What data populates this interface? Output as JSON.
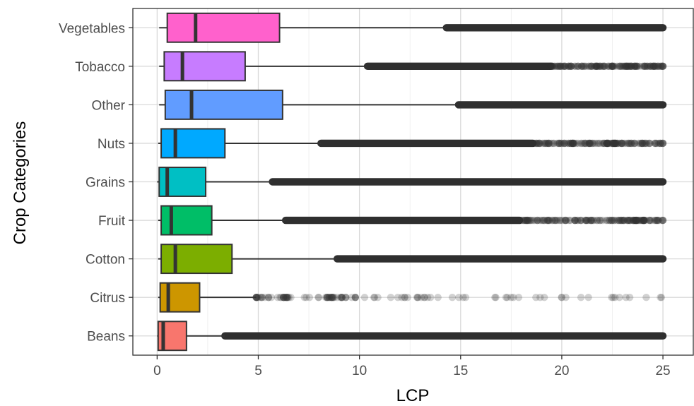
{
  "chart_data": {
    "type": "boxplot",
    "orientation": "horizontal",
    "xlabel": "LCP",
    "ylabel": "Crop Categories",
    "xlim": [
      -1.2,
      26.5
    ],
    "xticks": [
      0,
      5,
      10,
      15,
      20,
      25
    ],
    "xtick_labels": [
      "0",
      "5",
      "10",
      "15",
      "20",
      "25"
    ],
    "grid": true,
    "legend": "none",
    "categories": [
      "Beans",
      "Citrus",
      "Cotton",
      "Fruit",
      "Grains",
      "Nuts",
      "Other",
      "Tobacco",
      "Vegetables"
    ],
    "boxes": [
      {
        "category": "Beans",
        "color": "#F8766D",
        "whisker_low": 0.0,
        "q1": 0.05,
        "median": 0.3,
        "q3": 1.45,
        "whisker_high": 3.35,
        "outlier_start": 3.35,
        "outlier_end": 25.0,
        "outlier_density": "dense"
      },
      {
        "category": "Citrus",
        "color": "#CD9600",
        "whisker_low": 0.05,
        "q1": 0.15,
        "median": 0.55,
        "q3": 2.1,
        "whisker_high": 4.9,
        "outlier_start": 4.9,
        "outlier_end": 25.0,
        "outlier_density": "sparse"
      },
      {
        "category": "Cotton",
        "color": "#7CAE00",
        "whisker_low": 0.05,
        "q1": 0.2,
        "median": 0.9,
        "q3": 3.7,
        "whisker_high": 8.9,
        "outlier_start": 8.9,
        "outlier_end": 25.0,
        "outlier_density": "dense"
      },
      {
        "category": "Fruit",
        "color": "#00BE67",
        "whisker_low": 0.05,
        "q1": 0.2,
        "median": 0.7,
        "q3": 2.7,
        "whisker_high": 6.35,
        "outlier_start": 6.35,
        "outlier_end": 25.0,
        "outlier_density": "medium"
      },
      {
        "category": "Grains",
        "color": "#00BFC4",
        "whisker_low": 0.0,
        "q1": 0.1,
        "median": 0.5,
        "q3": 2.4,
        "whisker_high": 5.7,
        "outlier_start": 5.7,
        "outlier_end": 25.0,
        "outlier_density": "dense"
      },
      {
        "category": "Nuts",
        "color": "#00A9FF",
        "whisker_low": 0.05,
        "q1": 0.2,
        "median": 0.9,
        "q3": 3.35,
        "whisker_high": 8.1,
        "outlier_start": 8.1,
        "outlier_end": 25.0,
        "outlier_density": "medium"
      },
      {
        "category": "Other",
        "color": "#619CFF",
        "whisker_low": 0.1,
        "q1": 0.4,
        "median": 1.7,
        "q3": 6.2,
        "whisker_high": 14.9,
        "outlier_start": 14.9,
        "outlier_end": 25.0,
        "outlier_density": "dense"
      },
      {
        "category": "Tobacco",
        "color": "#C77CFF",
        "whisker_low": 0.1,
        "q1": 0.35,
        "median": 1.25,
        "q3": 4.35,
        "whisker_high": 10.4,
        "outlier_start": 10.4,
        "outlier_end": 25.0,
        "outlier_density": "medium"
      },
      {
        "category": "Vegetables",
        "color": "#FF61CC",
        "whisker_low": 0.1,
        "q1": 0.5,
        "median": 1.9,
        "q3": 6.05,
        "whisker_high": 14.3,
        "outlier_start": 14.3,
        "outlier_end": 25.0,
        "outlier_density": "dense"
      }
    ]
  }
}
